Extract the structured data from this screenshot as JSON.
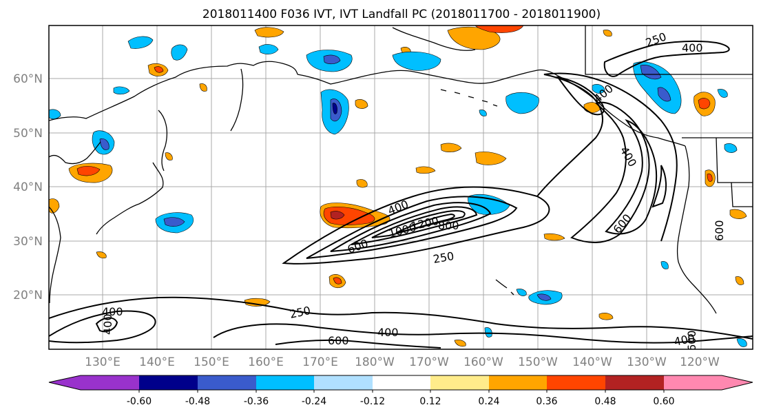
{
  "title": "2018011400 F036 IVT, IVT Landfall PC (2018011700 - 2018011900)",
  "lat_labels": [
    "20°N",
    "30°N",
    "40°N",
    "50°N",
    "60°N"
  ],
  "lon_labels": [
    "130°E",
    "140°E",
    "150°E",
    "160°E",
    "170°E",
    "180°W",
    "170°W",
    "160°W",
    "150°W",
    "140°W",
    "130°W",
    "120°W"
  ],
  "colorbar": {
    "tick_labels": [
      "-0.60",
      "-0.48",
      "-0.36",
      "-0.24",
      "-0.12",
      "0.12",
      "0.24",
      "0.36",
      "0.48",
      "0.60"
    ],
    "colors": [
      "#9932cc",
      "#00008b",
      "#3a5bcc",
      "#00bfff",
      "#b0e0ff",
      "#ffffff",
      "#ffec8b",
      "#ffa500",
      "#ff4500",
      "#b22222",
      "#ff88b0"
    ]
  },
  "contour_labels": [
    "400",
    "400",
    "600",
    "250",
    "400",
    "600",
    "400",
    "1000",
    "1200",
    "800",
    "600",
    "250",
    "400",
    "600",
    "400",
    "250",
    "600",
    "400",
    "400"
  ]
}
